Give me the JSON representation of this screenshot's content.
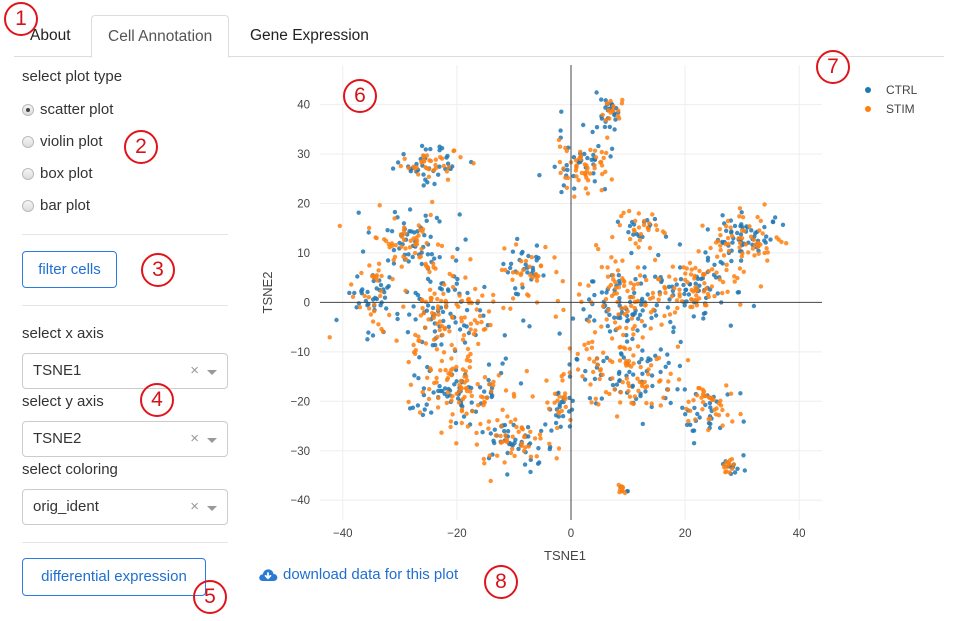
{
  "tabs": [
    {
      "label": "About"
    },
    {
      "label": "Cell Annotation"
    },
    {
      "label": "Gene Expression"
    }
  ],
  "sidebar": {
    "plot_type_label": "select plot type",
    "plot_types": [
      "scatter plot",
      "violin plot",
      "box plot",
      "bar plot"
    ],
    "selected_plot_type": "scatter plot",
    "filter_button": "filter cells",
    "x_axis_label": "select x axis",
    "x_axis_value": "TSNE1",
    "y_axis_label": "select y axis",
    "y_axis_value": "TSNE2",
    "coloring_label": "select coloring",
    "coloring_value": "orig_ident",
    "clear_symbol": "×",
    "diff_button": "differential expression"
  },
  "download_link": "download data for this plot",
  "annotations": [
    "1",
    "2",
    "3",
    "4",
    "5",
    "6",
    "7",
    "8"
  ],
  "chart_data": {
    "type": "scatter",
    "title": "",
    "xlabel": "TSNE1",
    "ylabel": "TSNE2",
    "xlim": [
      -44,
      44
    ],
    "ylim": [
      -44,
      48
    ],
    "x_ticks": [
      -40,
      -20,
      0,
      20,
      40
    ],
    "y_ticks": [
      -40,
      -30,
      -20,
      -10,
      0,
      10,
      20,
      30,
      40
    ],
    "tick_labels_x": [
      "−40",
      "−20",
      "0",
      "20",
      "40"
    ],
    "tick_labels_y": [
      "−40",
      "−30",
      "−20",
      "−10",
      "0",
      "10",
      "20",
      "30",
      "40"
    ],
    "grid": true,
    "legend_position": "top-right",
    "series": [
      {
        "name": "CTRL",
        "color": "#1f77b4"
      },
      {
        "name": "STIM",
        "color": "#ff7f0e"
      }
    ],
    "clusters": [
      {
        "center": [
          -25,
          28
        ],
        "spread": [
          5,
          3
        ],
        "n": 70
      },
      {
        "center": [
          -28,
          12
        ],
        "spread": [
          6,
          5
        ],
        "n": 110
      },
      {
        "center": [
          -35,
          2
        ],
        "spread": [
          3,
          6
        ],
        "n": 60
      },
      {
        "center": [
          -23,
          -3
        ],
        "spread": [
          8,
          8
        ],
        "n": 180
      },
      {
        "center": [
          -20,
          -18
        ],
        "spread": [
          8,
          6
        ],
        "n": 150
      },
      {
        "center": [
          -10,
          -28
        ],
        "spread": [
          6,
          4
        ],
        "n": 90
      },
      {
        "center": [
          -8,
          6
        ],
        "spread": [
          4,
          5
        ],
        "n": 60
      },
      {
        "center": [
          2,
          28
        ],
        "spread": [
          4,
          5
        ],
        "n": 90
      },
      {
        "center": [
          7,
          38
        ],
        "spread": [
          2,
          3
        ],
        "n": 40
      },
      {
        "center": [
          10,
          0
        ],
        "spread": [
          8,
          8
        ],
        "n": 180
      },
      {
        "center": [
          10,
          -15
        ],
        "spread": [
          8,
          6
        ],
        "n": 140
      },
      {
        "center": [
          22,
          3
        ],
        "spread": [
          6,
          6
        ],
        "n": 130
      },
      {
        "center": [
          31,
          13
        ],
        "spread": [
          5,
          4
        ],
        "n": 110
      },
      {
        "center": [
          24,
          -22
        ],
        "spread": [
          4,
          5
        ],
        "n": 70
      },
      {
        "center": [
          28,
          -33
        ],
        "spread": [
          1.5,
          2
        ],
        "n": 25
      },
      {
        "center": [
          9,
          -38
        ],
        "spread": [
          1,
          1
        ],
        "n": 15
      },
      {
        "center": [
          -2,
          -20
        ],
        "spread": [
          2,
          6
        ],
        "n": 40
      },
      {
        "center": [
          12,
          15
        ],
        "spread": [
          3,
          3
        ],
        "n": 40
      }
    ],
    "ctrl_share": 0.45
  }
}
